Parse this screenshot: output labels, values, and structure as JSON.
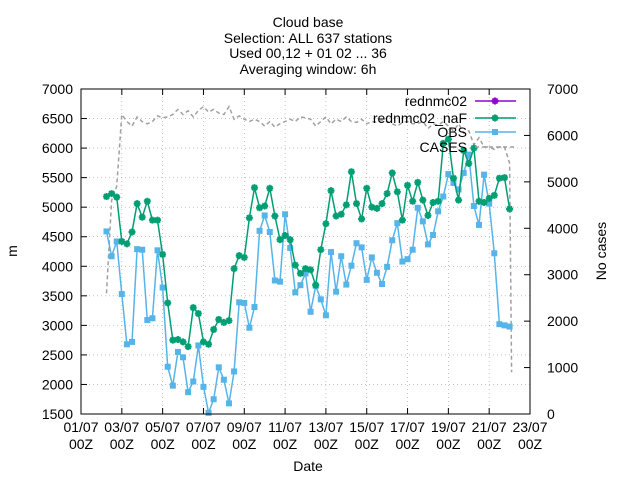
{
  "chart_data": {
    "type": "line",
    "title_lines": [
      "Cloud base",
      "Selection: ALL    637 stations",
      "Used 00,12 + 01 02 ... 36",
      "Averaging window:  6h"
    ],
    "xlabel": "Date",
    "ylabel": "m",
    "y2label": "No cases",
    "xlim": [
      0,
      22
    ],
    "ylim": [
      1500,
      7000
    ],
    "y2lim": [
      0,
      7000
    ],
    "x_ticks": [
      {
        "x": 0,
        "label": [
          "01/07",
          "00Z"
        ]
      },
      {
        "x": 2,
        "label": [
          "03/07",
          "00Z"
        ]
      },
      {
        "x": 4,
        "label": [
          "05/07",
          "00Z"
        ]
      },
      {
        "x": 6,
        "label": [
          "07/07",
          "00Z"
        ]
      },
      {
        "x": 8,
        "label": [
          "09/07",
          "00Z"
        ]
      },
      {
        "x": 10,
        "label": [
          "11/07",
          "00Z"
        ]
      },
      {
        "x": 12,
        "label": [
          "13/07",
          "00Z"
        ]
      },
      {
        "x": 14,
        "label": [
          "15/07",
          "00Z"
        ]
      },
      {
        "x": 16,
        "label": [
          "17/07",
          "00Z"
        ]
      },
      {
        "x": 18,
        "label": [
          "19/07",
          "00Z"
        ]
      },
      {
        "x": 20,
        "label": [
          "21/07",
          "00Z"
        ]
      },
      {
        "x": 22,
        "label": [
          "23/07",
          "00Z"
        ]
      }
    ],
    "y_ticks": [
      "1500",
      "2000",
      "2500",
      "3000",
      "3500",
      "4000",
      "4500",
      "5000",
      "5500",
      "6000",
      "6500",
      "7000"
    ],
    "y2_ticks": [
      "0",
      "1000",
      "2000",
      "3000",
      "4000",
      "5000",
      "6000",
      "7000"
    ],
    "grid": true,
    "legend_position": "top-right",
    "colors": {
      "rednmc02": "#9400d3",
      "rednmc02_naF": "#009e73",
      "OBS": "#56b4e9",
      "CASES": "#a0a0a0"
    },
    "series": [
      {
        "name": "rednmc02",
        "axis": "y",
        "x": [],
        "values": []
      },
      {
        "name": "rednmc02_naF",
        "axis": "y",
        "x": [
          1.25,
          1.5,
          1.75,
          2,
          2.25,
          2.5,
          2.75,
          3,
          3.25,
          3.5,
          3.75,
          4,
          4.25,
          4.5,
          4.75,
          5,
          5.25,
          5.5,
          5.75,
          6,
          6.25,
          6.5,
          6.75,
          7,
          7.25,
          7.5,
          7.75,
          8,
          8.25,
          8.5,
          8.75,
          9,
          9.25,
          9.5,
          9.75,
          10,
          10.25,
          10.5,
          10.75,
          11,
          11.25,
          11.5,
          11.75,
          12,
          12.25,
          12.5,
          12.75,
          13,
          13.25,
          13.5,
          13.75,
          14,
          14.25,
          14.5,
          14.75,
          15,
          15.25,
          15.5,
          15.75,
          16,
          16.25,
          16.5,
          16.75,
          17,
          17.25,
          17.5,
          17.75,
          18,
          18.25,
          18.5,
          18.75,
          19,
          19.25,
          19.5,
          19.75,
          20,
          20.25,
          20.5,
          20.75,
          21
        ],
        "values": [
          5180,
          5230,
          5170,
          4420,
          4380,
          4580,
          5060,
          4830,
          5100,
          4780,
          4780,
          4200,
          3380,
          2750,
          2760,
          2720,
          2640,
          3300,
          3200,
          2720,
          2680,
          2930,
          3100,
          3050,
          3080,
          3960,
          4180,
          4150,
          4820,
          5330,
          4990,
          5020,
          5320,
          4850,
          4450,
          4520,
          4450,
          4020,
          3880,
          3960,
          3940,
          3680,
          4280,
          4720,
          5280,
          4850,
          4880,
          5040,
          5600,
          5060,
          4800,
          5320,
          5000,
          4980,
          5060,
          5230,
          5580,
          5260,
          4780,
          5370,
          5100,
          5420,
          5120,
          4860,
          5080,
          5100,
          6080,
          6150,
          5490,
          5120,
          5960,
          5740,
          6000,
          5100,
          5080,
          5150,
          5200,
          5490,
          5500,
          4970
        ]
      },
      {
        "name": "OBS",
        "axis": "y",
        "x": [
          1.25,
          1.5,
          1.75,
          2,
          2.25,
          2.5,
          2.75,
          3,
          3.25,
          3.5,
          3.75,
          4,
          4.25,
          4.5,
          4.75,
          5,
          5.25,
          5.5,
          5.75,
          6,
          6.25,
          6.5,
          6.75,
          7,
          7.25,
          7.5,
          7.75,
          8,
          8.25,
          8.5,
          8.75,
          9,
          9.25,
          9.5,
          9.75,
          10,
          10.25,
          10.5,
          10.75,
          11,
          11.25,
          11.5,
          11.75,
          12,
          12.25,
          12.5,
          12.75,
          13,
          13.25,
          13.5,
          13.75,
          14,
          14.25,
          14.5,
          14.75,
          15,
          15.25,
          15.5,
          15.75,
          16,
          16.25,
          16.5,
          16.75,
          17,
          17.25,
          17.5,
          17.75,
          18,
          18.25,
          18.5,
          18.75,
          19,
          19.25,
          19.5,
          19.75,
          20,
          20.25,
          20.5,
          20.75,
          21
        ],
        "values": [
          4590,
          4170,
          4420,
          3530,
          2680,
          2720,
          4290,
          4280,
          3090,
          3120,
          4270,
          3640,
          2300,
          1980,
          2550,
          2460,
          1870,
          2050,
          2660,
          1960,
          1520,
          1750,
          2290,
          2080,
          1680,
          2220,
          3390,
          3380,
          2960,
          3310,
          4600,
          4860,
          4580,
          3760,
          3740,
          4880,
          4310,
          3560,
          3680,
          3880,
          3230,
          3670,
          3440,
          3170,
          4240,
          3570,
          4170,
          3690,
          4010,
          4390,
          4320,
          3770,
          4150,
          3890,
          3700,
          3990,
          4440,
          4730,
          4080,
          4120,
          4280,
          4990,
          4760,
          4370,
          4530,
          4930,
          5180,
          5560,
          5410,
          5300,
          5580,
          5890,
          5020,
          4700,
          5550,
          5060,
          4220,
          3020,
          3000,
          2980
        ]
      },
      {
        "name": "CASES",
        "axis": "y2",
        "x": [
          1.25,
          1.5,
          1.75,
          2,
          2.25,
          2.5,
          2.75,
          3,
          3.25,
          3.5,
          3.75,
          4,
          4.25,
          4.5,
          4.75,
          5,
          5.25,
          5.5,
          5.75,
          6,
          6.25,
          6.5,
          6.75,
          7,
          7.25,
          7.5,
          7.75,
          8,
          8.25,
          8.5,
          8.75,
          9,
          9.25,
          9.5,
          9.75,
          10,
          10.25,
          10.5,
          10.75,
          11,
          11.25,
          11.5,
          11.75,
          12,
          12.25,
          12.5,
          12.75,
          13,
          13.25,
          13.5,
          13.75,
          14,
          14.25,
          14.5,
          14.75,
          15,
          15.25,
          15.5,
          15.75,
          16,
          16.25,
          16.5,
          16.75,
          17,
          17.25,
          17.5,
          17.75,
          18,
          18.25,
          18.5,
          18.75,
          19,
          19.25,
          19.5,
          19.75,
          20,
          20.25,
          20.5,
          20.75,
          21,
          21.1
        ],
        "values": [
          2600,
          4600,
          4900,
          6450,
          6300,
          6200,
          6400,
          6300,
          6250,
          6300,
          6420,
          6380,
          6400,
          6450,
          6560,
          6450,
          6530,
          6400,
          6540,
          6620,
          6500,
          6560,
          6480,
          6450,
          6620,
          6350,
          6420,
          6350,
          6300,
          6350,
          6300,
          6200,
          6300,
          6180,
          6250,
          6300,
          6350,
          6300,
          6400,
          6380,
          6350,
          6200,
          6300,
          6400,
          6250,
          6350,
          6300,
          6400,
          6300,
          6280,
          6350,
          6250,
          6300,
          6280,
          6320,
          6300,
          6250,
          6200,
          6280,
          6300,
          6250,
          6260,
          6300,
          6150,
          6250,
          6220,
          6300,
          6200,
          6100,
          6250,
          6050,
          6100,
          5800,
          5950,
          5750,
          5750,
          5700,
          5750,
          5750,
          5400,
          900
        ]
      }
    ]
  }
}
